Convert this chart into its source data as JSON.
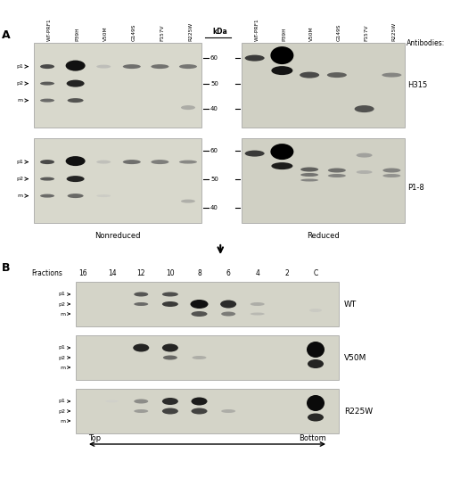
{
  "fig_width": 5.07,
  "fig_height": 5.36,
  "bg_color": "#ffffff",
  "panel_A_label": "A",
  "panel_B_label": "B",
  "col_labels": [
    "WT-PRF1",
    "P39H",
    "V50M",
    "G149S",
    "F157V",
    "R225W"
  ],
  "kDa_label": "kDa",
  "kDa_marks": [
    "60",
    "50",
    "40"
  ],
  "nonreduced_label": "Nonreduced",
  "reduced_label": "Reduced",
  "antibodies_label": "Antibodies:",
  "h315_label": "H315",
  "p18_label": "P1-8",
  "band_labels_left": [
    "p1",
    "p2",
    "m"
  ],
  "fractions_label": "Fractions",
  "fraction_numbers": [
    "16",
    "14",
    "12",
    "10",
    "8",
    "6",
    "4",
    "2",
    "C"
  ],
  "wt_label": "WT",
  "v50m_label": "V50M",
  "r225w_label": "R225W",
  "band_labels_B": [
    "p1",
    "p2",
    "m"
  ],
  "top_label": "Top",
  "bottom_label": "Bottom",
  "blot_bg_left": "#d8d8cc",
  "blot_bg_right": "#d0d0c4",
  "blot_bg_B": "#d4d4c8"
}
